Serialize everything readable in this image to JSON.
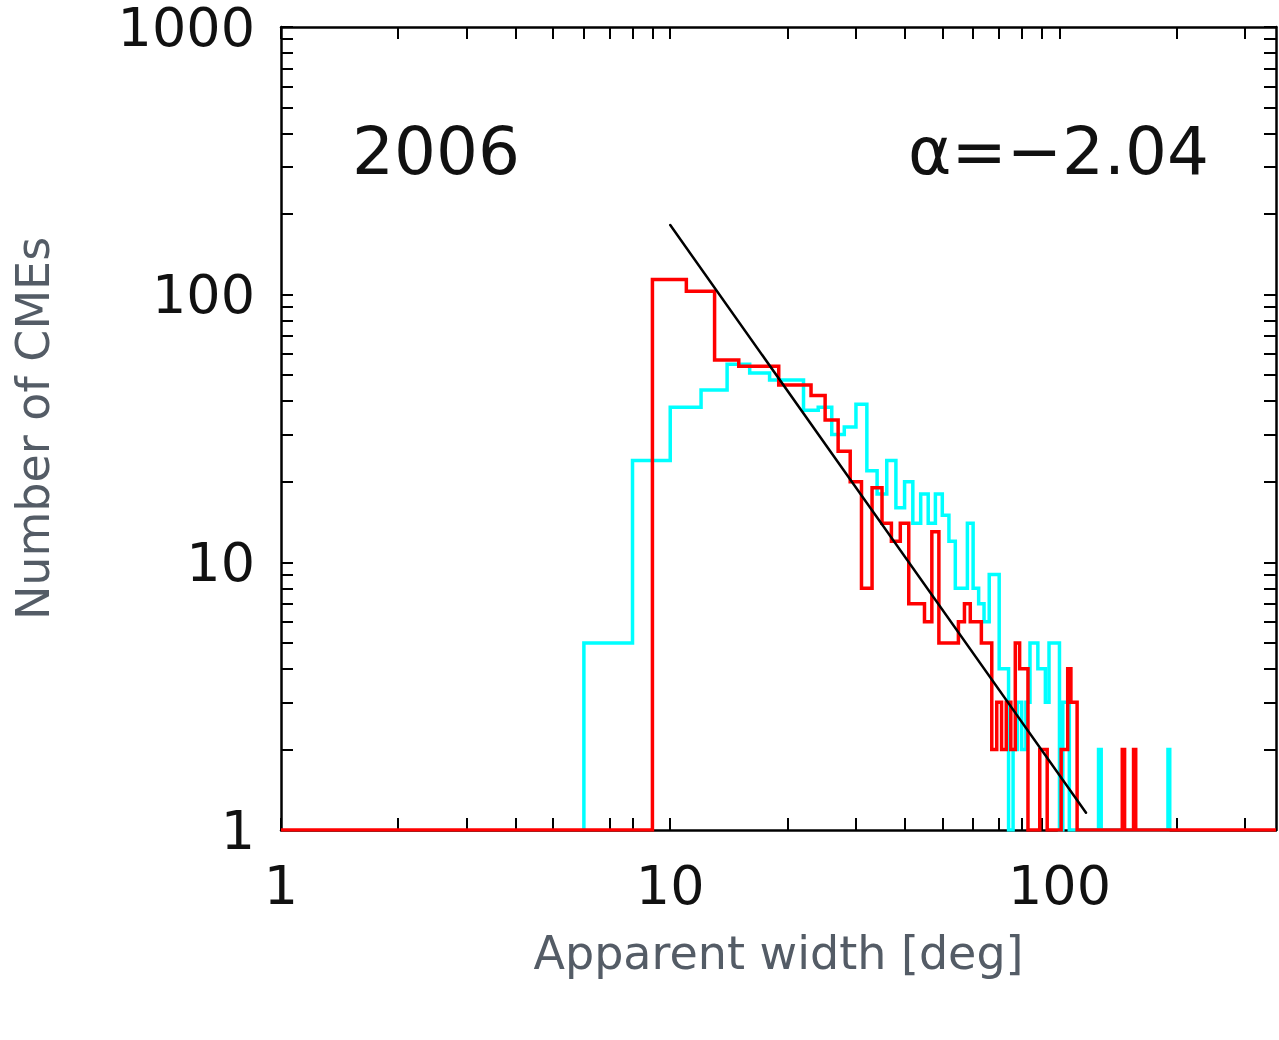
{
  "chart_data": {
    "type": "step",
    "xlabel": "Apparent width [deg]",
    "ylabel": "Number of CMEs",
    "annotations": [
      "2006",
      "α=−2.04"
    ],
    "log": "xy",
    "xlim": [
      1,
      360
    ],
    "ylim": [
      1,
      1000
    ],
    "xticks": [
      1,
      {
        "value": 2,
        "label": null
      },
      {
        "value": 3,
        "label": null
      },
      {
        "value": 4,
        "label": null
      },
      {
        "value": 5,
        "label": null
      },
      {
        "value": 6,
        "label": null
      },
      {
        "value": 7,
        "label": null
      },
      {
        "value": 8,
        "label": null
      },
      {
        "value": 9,
        "label": null
      },
      10,
      {
        "value": 20,
        "label": null
      },
      {
        "value": 30,
        "label": null
      },
      {
        "value": 40,
        "label": null
      },
      {
        "value": 50,
        "label": null
      },
      {
        "value": 60,
        "label": null
      },
      {
        "value": 70,
        "label": null
      },
      {
        "value": 80,
        "label": null
      },
      {
        "value": 90,
        "label": null
      },
      100,
      {
        "value": 200,
        "label": null
      },
      {
        "value": 300,
        "label": null
      }
    ],
    "yticks": [
      1,
      {
        "value": 2,
        "label": null
      },
      {
        "value": 3,
        "label": null
      },
      {
        "value": 4,
        "label": null
      },
      {
        "value": 5,
        "label": null
      },
      {
        "value": 6,
        "label": null
      },
      {
        "value": 7,
        "label": null
      },
      {
        "value": 8,
        "label": null
      },
      {
        "value": 9,
        "label": null
      },
      10,
      {
        "value": 20,
        "label": null
      },
      {
        "value": 30,
        "label": null
      },
      {
        "value": 40,
        "label": null
      },
      {
        "value": 50,
        "label": null
      },
      {
        "value": 60,
        "label": null
      },
      {
        "value": 70,
        "label": null
      },
      {
        "value": 80,
        "label": null
      },
      {
        "value": 90,
        "label": null
      },
      100,
      {
        "value": 200,
        "label": null
      },
      {
        "value": 300,
        "label": null
      },
      {
        "value": 400,
        "label": null
      },
      {
        "value": 500,
        "label": null
      },
      {
        "value": 600,
        "label": null
      },
      {
        "value": 700,
        "label": null
      },
      {
        "value": 800,
        "label": null
      },
      {
        "value": 900,
        "label": null
      },
      1000
    ],
    "series": [
      {
        "color": "#00ffff",
        "x": [
          6,
          6,
          8,
          10,
          12,
          14,
          16,
          18,
          20,
          22,
          24,
          26,
          28,
          30,
          32,
          34,
          36,
          38,
          40,
          42,
          44,
          46,
          48,
          50,
          52,
          54,
          56,
          58,
          60,
          62,
          64,
          66,
          68,
          70,
          72,
          74,
          76,
          78,
          80,
          82,
          84,
          86,
          88,
          90,
          92,
          94,
          96,
          98,
          100,
          102,
          104,
          106,
          126,
          128,
          190,
          192
        ],
        "values": [
          1,
          5,
          24,
          38,
          44,
          55,
          51,
          48,
          48,
          37,
          38,
          30,
          32,
          39,
          22,
          18,
          24,
          16,
          20,
          14,
          18,
          14,
          18,
          15,
          12,
          8,
          8,
          14,
          8,
          7,
          6,
          9,
          9,
          4,
          4,
          1,
          2,
          3,
          2,
          3,
          5,
          5,
          4,
          4,
          3,
          5,
          5,
          5,
          1,
          3,
          3,
          1,
          2,
          1,
          2,
          1
        ]
      },
      {
        "color": "#ff0000",
        "x": [
          1,
          9,
          11,
          13,
          15,
          17,
          19,
          21,
          23,
          25,
          27,
          29,
          31,
          33,
          35,
          37,
          39,
          41,
          43,
          45,
          47,
          49,
          51,
          53,
          55,
          57,
          59,
          61,
          63,
          65,
          67,
          69,
          71,
          73,
          75,
          77,
          79,
          81,
          83,
          89,
          91,
          93,
          101,
          103,
          105,
          107,
          109,
          111,
          145,
          147,
          155,
          157,
          360
        ],
        "values": [
          1,
          114,
          103,
          57,
          54,
          54,
          46,
          46,
          42,
          34,
          26,
          20,
          8,
          19,
          14,
          12,
          14,
          7,
          7,
          6,
          13,
          5,
          5,
          5,
          6,
          7,
          6,
          6,
          5,
          5,
          2,
          3,
          2,
          3,
          2,
          5,
          4,
          4,
          1,
          2,
          2,
          1,
          2,
          2,
          4,
          3,
          3,
          1,
          2,
          1,
          2,
          1,
          1
        ]
      },
      {
        "type": "line",
        "color": "#000000",
        "x": [
          10,
          117
        ],
        "values": [
          182,
          1.16
        ]
      }
    ]
  }
}
